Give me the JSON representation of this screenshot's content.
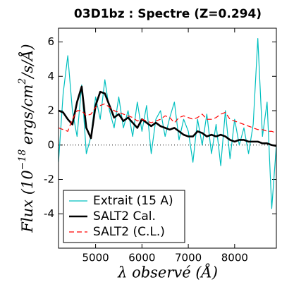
{
  "chart_data": {
    "type": "line",
    "title": "03D1bz : Spectre (Z=0.294)",
    "xlabel": "λ observé (Å)",
    "ylabel_parts": [
      "Flux (10",
      "−18",
      " ergs/cm",
      "2",
      "/s/Å)"
    ],
    "x": [
      4200,
      4300,
      4400,
      4500,
      4600,
      4700,
      4800,
      4900,
      5000,
      5100,
      5200,
      5300,
      5400,
      5500,
      5600,
      5700,
      5800,
      5900,
      6000,
      6100,
      6200,
      6300,
      6400,
      6500,
      6600,
      6700,
      6800,
      6900,
      7000,
      7100,
      7200,
      7300,
      7400,
      7500,
      7600,
      7700,
      7800,
      7900,
      8000,
      8100,
      8200,
      8300,
      8400,
      8500,
      8600,
      8700,
      8800,
      8900
    ],
    "series": [
      {
        "name": "Extrait (15 A)",
        "color": "#00bfbf",
        "style": "solid",
        "width": 1.2,
        "values": [
          -1,
          3,
          5.2,
          2,
          0.5,
          3.5,
          -0.5,
          0.5,
          2.8,
          1.5,
          3.8,
          2.0,
          1.0,
          2.8,
          1.0,
          2.0,
          0.5,
          2.5,
          0.8,
          2.3,
          -0.5,
          1.5,
          2.0,
          0.5,
          1.6,
          2.5,
          0.3,
          1.5,
          0.8,
          -1.0,
          1.5,
          0.0,
          1.8,
          -0.5,
          1.2,
          -1.2,
          2.0,
          -0.8,
          1.5,
          0.0,
          1.0,
          -0.5,
          1.2,
          6.2,
          0.5,
          2.5,
          -3.7,
          0.0
        ]
      },
      {
        "name": "SALT2 Cal.",
        "color": "#000000",
        "style": "solid",
        "width": 2.6,
        "values": [
          2.0,
          1.9,
          1.5,
          1.2,
          2.5,
          3.4,
          1.0,
          0.4,
          2.3,
          3.1,
          3.0,
          2.3,
          1.6,
          1.8,
          1.4,
          1.6,
          1.3,
          1.0,
          1.5,
          1.3,
          1.1,
          1.3,
          1.1,
          1.0,
          0.9,
          1.0,
          0.8,
          0.6,
          0.5,
          0.5,
          0.8,
          0.7,
          0.5,
          0.6,
          0.5,
          0.6,
          0.5,
          0.3,
          0.2,
          0.3,
          0.3,
          0.2,
          0.2,
          0.2,
          0.1,
          0.1,
          0.0,
          -0.05
        ]
      },
      {
        "name": "SALT2 (C.L.)",
        "color": "#ff0000",
        "style": "dashed",
        "width": 1.2,
        "values": [
          1.0,
          0.9,
          0.8,
          1.5,
          2.0,
          2.0,
          1.7,
          1.8,
          2.2,
          2.3,
          2.4,
          2.2,
          2.0,
          1.9,
          1.8,
          1.7,
          1.6,
          1.4,
          1.5,
          1.4,
          1.3,
          1.4,
          1.5,
          1.7,
          1.6,
          1.3,
          1.6,
          1.7,
          1.6,
          1.5,
          1.6,
          1.8,
          1.5,
          1.5,
          1.6,
          1.8,
          1.9,
          1.5,
          1.4,
          1.3,
          1.2,
          1.1,
          1.0,
          0.9,
          0.9,
          0.8,
          0.8,
          0.7
        ]
      }
    ],
    "xlim": [
      4200,
      8900
    ],
    "ylim": [
      -6,
      6.8
    ],
    "xticks": [
      5000,
      6000,
      7000,
      8000
    ],
    "yticks": [
      -4,
      -2,
      0,
      2,
      4,
      6
    ],
    "zero_line": true,
    "grid": false,
    "legend": "lower left"
  }
}
